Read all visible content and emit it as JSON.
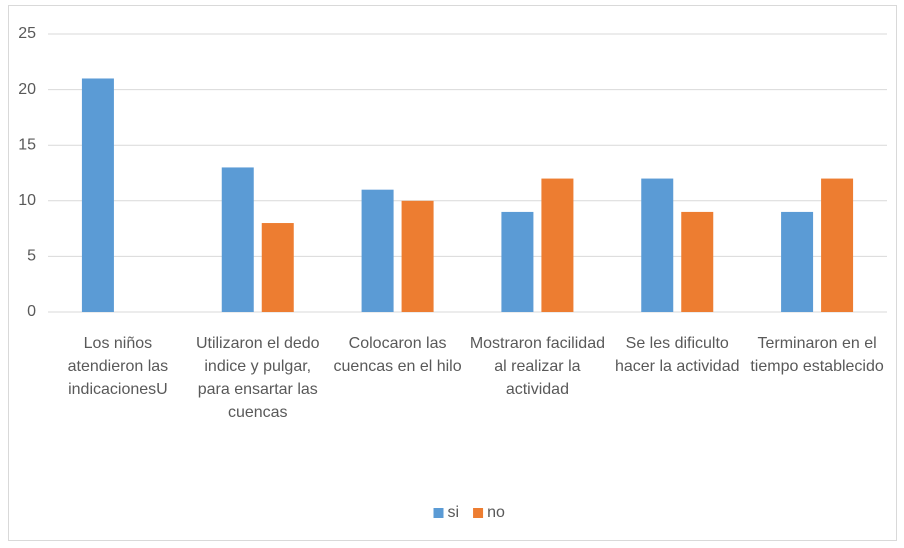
{
  "chart_data": {
    "type": "bar",
    "categories": [
      "Los niños atendieron las indicacionesU",
      "Utilizaron el dedo indice y pulgar, para ensartar las cuencas",
      "Colocaron las cuencas en el hilo",
      "Mostraron facilidad al realizar la actividad",
      "Se les dificulto hacer la actividad",
      "Terminaron en el tiempo establecido"
    ],
    "series": [
      {
        "name": "si",
        "color": "#5b9bd5",
        "values": [
          21,
          13,
          11,
          9,
          12,
          9
        ]
      },
      {
        "name": "no",
        "color": "#ed7d31",
        "values": [
          0,
          8,
          10,
          12,
          9,
          12
        ]
      }
    ],
    "ylim": [
      0,
      25
    ],
    "yticks": [
      0,
      5,
      10,
      15,
      20,
      25
    ],
    "grid": true,
    "legend": "bottom"
  }
}
